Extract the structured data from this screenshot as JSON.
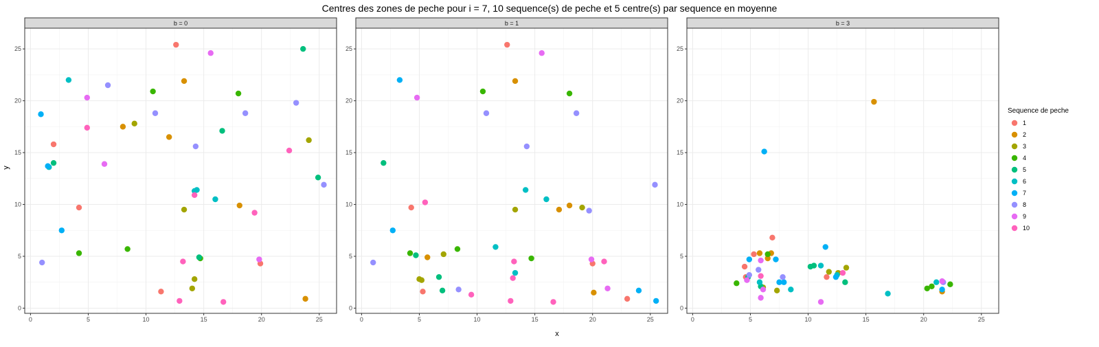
{
  "chart_data": {
    "type": "scatter",
    "title": "Centres des zones de peche pour i = 7, 10 sequence(s) de peche et 5 centre(s) par sequence en moyenne",
    "xlabel": "x",
    "ylabel": "y",
    "xlim": [
      -0.5,
      26.5
    ],
    "ylim": [
      -0.5,
      27
    ],
    "x_ticks": [
      0,
      5,
      10,
      15,
      20,
      25
    ],
    "y_ticks": [
      0,
      5,
      10,
      15,
      20,
      25
    ],
    "grid": true,
    "legend": {
      "title": "Sequence de peche",
      "placement": "right",
      "entries": [
        {
          "label": "1",
          "color": "#F8766D"
        },
        {
          "label": "2",
          "color": "#D89000"
        },
        {
          "label": "3",
          "color": "#A3A500"
        },
        {
          "label": "4",
          "color": "#39B600"
        },
        {
          "label": "5",
          "color": "#00BF7D"
        },
        {
          "label": "6",
          "color": "#00BFC4"
        },
        {
          "label": "7",
          "color": "#00B0F6"
        },
        {
          "label": "8",
          "color": "#9590FF"
        },
        {
          "label": "9",
          "color": "#E76BF3"
        },
        {
          "label": "10",
          "color": "#FF62BC"
        }
      ]
    },
    "facets": [
      {
        "label": "b = 0",
        "points": [
          {
            "x": 12.6,
            "y": 25.4,
            "s": 1
          },
          {
            "x": 2.0,
            "y": 15.8,
            "s": 1
          },
          {
            "x": 4.2,
            "y": 9.7,
            "s": 1
          },
          {
            "x": 11.3,
            "y": 1.6,
            "s": 1
          },
          {
            "x": 19.9,
            "y": 4.3,
            "s": 1
          },
          {
            "x": 13.3,
            "y": 21.9,
            "s": 2
          },
          {
            "x": 8.0,
            "y": 17.5,
            "s": 2
          },
          {
            "x": 12.0,
            "y": 16.5,
            "s": 2
          },
          {
            "x": 18.1,
            "y": 9.9,
            "s": 2
          },
          {
            "x": 23.8,
            "y": 0.9,
            "s": 2
          },
          {
            "x": 9.0,
            "y": 17.8,
            "s": 3
          },
          {
            "x": 13.3,
            "y": 9.5,
            "s": 3
          },
          {
            "x": 14.2,
            "y": 2.8,
            "s": 3
          },
          {
            "x": 14.0,
            "y": 1.9,
            "s": 3
          },
          {
            "x": 24.1,
            "y": 16.2,
            "s": 3
          },
          {
            "x": 10.6,
            "y": 20.9,
            "s": 4
          },
          {
            "x": 18.0,
            "y": 20.7,
            "s": 4
          },
          {
            "x": 4.2,
            "y": 5.3,
            "s": 4
          },
          {
            "x": 8.4,
            "y": 5.7,
            "s": 4
          },
          {
            "x": 14.7,
            "y": 4.8,
            "s": 4
          },
          {
            "x": 23.6,
            "y": 25.0,
            "s": 5
          },
          {
            "x": 16.6,
            "y": 17.1,
            "s": 5
          },
          {
            "x": 2.0,
            "y": 14.0,
            "s": 5
          },
          {
            "x": 24.9,
            "y": 12.6,
            "s": 5
          },
          {
            "x": 14.6,
            "y": 4.9,
            "s": 5
          },
          {
            "x": 3.3,
            "y": 22.0,
            "s": 6
          },
          {
            "x": 14.4,
            "y": 11.4,
            "s": 6
          },
          {
            "x": 14.2,
            "y": 11.3,
            "s": 6
          },
          {
            "x": 16.0,
            "y": 10.5,
            "s": 6
          },
          {
            "x": 1.6,
            "y": 13.6,
            "s": 6
          },
          {
            "x": 0.9,
            "y": 18.7,
            "s": 7
          },
          {
            "x": 1.5,
            "y": 13.7,
            "s": 7
          },
          {
            "x": 2.7,
            "y": 7.5,
            "s": 7
          },
          {
            "x": 6.7,
            "y": 21.5,
            "s": 8
          },
          {
            "x": 10.8,
            "y": 18.8,
            "s": 8
          },
          {
            "x": 18.6,
            "y": 18.8,
            "s": 8
          },
          {
            "x": 23.0,
            "y": 19.8,
            "s": 8
          },
          {
            "x": 14.3,
            "y": 15.6,
            "s": 8
          },
          {
            "x": 25.4,
            "y": 11.9,
            "s": 8
          },
          {
            "x": 1.0,
            "y": 4.4,
            "s": 8
          },
          {
            "x": 4.9,
            "y": 20.3,
            "s": 9
          },
          {
            "x": 15.6,
            "y": 24.6,
            "s": 9
          },
          {
            "x": 6.4,
            "y": 13.9,
            "s": 9
          },
          {
            "x": 19.8,
            "y": 4.7,
            "s": 9
          },
          {
            "x": 4.9,
            "y": 17.4,
            "s": 10
          },
          {
            "x": 22.4,
            "y": 15.2,
            "s": 10
          },
          {
            "x": 14.2,
            "y": 10.9,
            "s": 10
          },
          {
            "x": 19.4,
            "y": 9.2,
            "s": 10
          },
          {
            "x": 13.2,
            "y": 4.5,
            "s": 10
          },
          {
            "x": 12.9,
            "y": 0.7,
            "s": 10
          },
          {
            "x": 16.7,
            "y": 0.6,
            "s": 10
          }
        ]
      },
      {
        "label": "b = 1",
        "points": [
          {
            "x": 12.6,
            "y": 25.4,
            "s": 1
          },
          {
            "x": 4.3,
            "y": 9.7,
            "s": 1
          },
          {
            "x": 5.3,
            "y": 1.6,
            "s": 1
          },
          {
            "x": 20.0,
            "y": 4.3,
            "s": 1
          },
          {
            "x": 23.0,
            "y": 0.9,
            "s": 1
          },
          {
            "x": 13.3,
            "y": 21.9,
            "s": 2
          },
          {
            "x": 17.1,
            "y": 9.5,
            "s": 2
          },
          {
            "x": 18.0,
            "y": 9.9,
            "s": 2
          },
          {
            "x": 5.7,
            "y": 4.9,
            "s": 2
          },
          {
            "x": 20.1,
            "y": 1.5,
            "s": 2
          },
          {
            "x": 13.3,
            "y": 9.5,
            "s": 3
          },
          {
            "x": 19.1,
            "y": 9.7,
            "s": 3
          },
          {
            "x": 7.1,
            "y": 5.2,
            "s": 3
          },
          {
            "x": 5.0,
            "y": 2.8,
            "s": 3
          },
          {
            "x": 5.2,
            "y": 2.7,
            "s": 3
          },
          {
            "x": 10.5,
            "y": 20.9,
            "s": 4
          },
          {
            "x": 18.0,
            "y": 20.7,
            "s": 4
          },
          {
            "x": 4.2,
            "y": 5.3,
            "s": 4
          },
          {
            "x": 8.3,
            "y": 5.7,
            "s": 4
          },
          {
            "x": 14.7,
            "y": 4.8,
            "s": 4
          },
          {
            "x": 1.9,
            "y": 14.0,
            "s": 5
          },
          {
            "x": 4.7,
            "y": 5.1,
            "s": 5
          },
          {
            "x": 6.7,
            "y": 3.0,
            "s": 5
          },
          {
            "x": 7.0,
            "y": 1.7,
            "s": 5
          },
          {
            "x": 14.2,
            "y": 11.4,
            "s": 6
          },
          {
            "x": 16.0,
            "y": 10.5,
            "s": 6
          },
          {
            "x": 11.6,
            "y": 5.9,
            "s": 6
          },
          {
            "x": 13.3,
            "y": 3.4,
            "s": 6
          },
          {
            "x": 3.3,
            "y": 22.0,
            "s": 7
          },
          {
            "x": 2.7,
            "y": 7.5,
            "s": 7
          },
          {
            "x": 24.0,
            "y": 1.7,
            "s": 7
          },
          {
            "x": 25.5,
            "y": 0.7,
            "s": 7
          },
          {
            "x": 10.8,
            "y": 18.8,
            "s": 8
          },
          {
            "x": 18.6,
            "y": 18.8,
            "s": 8
          },
          {
            "x": 14.3,
            "y": 15.6,
            "s": 8
          },
          {
            "x": 25.4,
            "y": 11.9,
            "s": 8
          },
          {
            "x": 19.7,
            "y": 9.4,
            "s": 8
          },
          {
            "x": 1.0,
            "y": 4.4,
            "s": 8
          },
          {
            "x": 8.4,
            "y": 1.8,
            "s": 8
          },
          {
            "x": 4.8,
            "y": 20.3,
            "s": 9
          },
          {
            "x": 15.6,
            "y": 24.6,
            "s": 9
          },
          {
            "x": 19.9,
            "y": 4.7,
            "s": 9
          },
          {
            "x": 21.3,
            "y": 1.9,
            "s": 9
          },
          {
            "x": 5.5,
            "y": 10.2,
            "s": 10
          },
          {
            "x": 13.2,
            "y": 4.5,
            "s": 10
          },
          {
            "x": 13.1,
            "y": 2.9,
            "s": 10
          },
          {
            "x": 21.0,
            "y": 4.5,
            "s": 10
          },
          {
            "x": 9.5,
            "y": 1.3,
            "s": 10
          },
          {
            "x": 12.9,
            "y": 0.7,
            "s": 10
          },
          {
            "x": 16.6,
            "y": 0.6,
            "s": 10
          }
        ]
      },
      {
        "label": "b = 3",
        "points": [
          {
            "x": 6.9,
            "y": 6.8,
            "s": 1
          },
          {
            "x": 5.3,
            "y": 5.2,
            "s": 1
          },
          {
            "x": 4.5,
            "y": 4.0,
            "s": 1
          },
          {
            "x": 4.6,
            "y": 3.0,
            "s": 1
          },
          {
            "x": 11.6,
            "y": 3.0,
            "s": 1
          },
          {
            "x": 15.7,
            "y": 19.9,
            "s": 2
          },
          {
            "x": 5.8,
            "y": 5.3,
            "s": 2
          },
          {
            "x": 6.8,
            "y": 5.3,
            "s": 2
          },
          {
            "x": 6.5,
            "y": 4.8,
            "s": 2
          },
          {
            "x": 21.6,
            "y": 1.6,
            "s": 2
          },
          {
            "x": 11.8,
            "y": 3.5,
            "s": 3
          },
          {
            "x": 13.3,
            "y": 3.9,
            "s": 3
          },
          {
            "x": 12.6,
            "y": 3.4,
            "s": 3
          },
          {
            "x": 7.3,
            "y": 1.7,
            "s": 3
          },
          {
            "x": 6.1,
            "y": 2.0,
            "s": 3
          },
          {
            "x": 3.8,
            "y": 2.4,
            "s": 4
          },
          {
            "x": 6.5,
            "y": 5.2,
            "s": 4
          },
          {
            "x": 20.3,
            "y": 1.9,
            "s": 4
          },
          {
            "x": 20.7,
            "y": 2.1,
            "s": 4
          },
          {
            "x": 22.3,
            "y": 2.3,
            "s": 4
          },
          {
            "x": 4.8,
            "y": 3.0,
            "s": 5
          },
          {
            "x": 10.2,
            "y": 4.0,
            "s": 5
          },
          {
            "x": 10.5,
            "y": 4.1,
            "s": 5
          },
          {
            "x": 13.2,
            "y": 2.5,
            "s": 5
          },
          {
            "x": 5.9,
            "y": 2.1,
            "s": 5
          },
          {
            "x": 11.1,
            "y": 4.1,
            "s": 6
          },
          {
            "x": 5.8,
            "y": 2.5,
            "s": 6
          },
          {
            "x": 8.5,
            "y": 1.8,
            "s": 6
          },
          {
            "x": 16.9,
            "y": 1.4,
            "s": 6
          },
          {
            "x": 21.1,
            "y": 2.5,
            "s": 6
          },
          {
            "x": 12.5,
            "y": 3.2,
            "s": 6
          },
          {
            "x": 6.2,
            "y": 15.1,
            "s": 7
          },
          {
            "x": 11.5,
            "y": 5.9,
            "s": 7
          },
          {
            "x": 7.2,
            "y": 4.7,
            "s": 7
          },
          {
            "x": 4.9,
            "y": 4.7,
            "s": 7
          },
          {
            "x": 7.5,
            "y": 2.5,
            "s": 7
          },
          {
            "x": 7.9,
            "y": 2.5,
            "s": 7
          },
          {
            "x": 12.4,
            "y": 3.0,
            "s": 7
          },
          {
            "x": 21.6,
            "y": 1.8,
            "s": 7
          },
          {
            "x": 5.7,
            "y": 3.7,
            "s": 8
          },
          {
            "x": 7.8,
            "y": 3.0,
            "s": 8
          },
          {
            "x": 4.9,
            "y": 3.2,
            "s": 8
          },
          {
            "x": 21.7,
            "y": 2.5,
            "s": 8
          },
          {
            "x": 5.9,
            "y": 4.6,
            "s": 9
          },
          {
            "x": 4.7,
            "y": 2.7,
            "s": 9
          },
          {
            "x": 6.1,
            "y": 1.8,
            "s": 9
          },
          {
            "x": 5.9,
            "y": 1.0,
            "s": 9
          },
          {
            "x": 11.1,
            "y": 0.6,
            "s": 9
          },
          {
            "x": 21.6,
            "y": 2.6,
            "s": 9
          },
          {
            "x": 5.9,
            "y": 3.1,
            "s": 10
          },
          {
            "x": 13.0,
            "y": 3.4,
            "s": 10
          }
        ]
      }
    ]
  }
}
